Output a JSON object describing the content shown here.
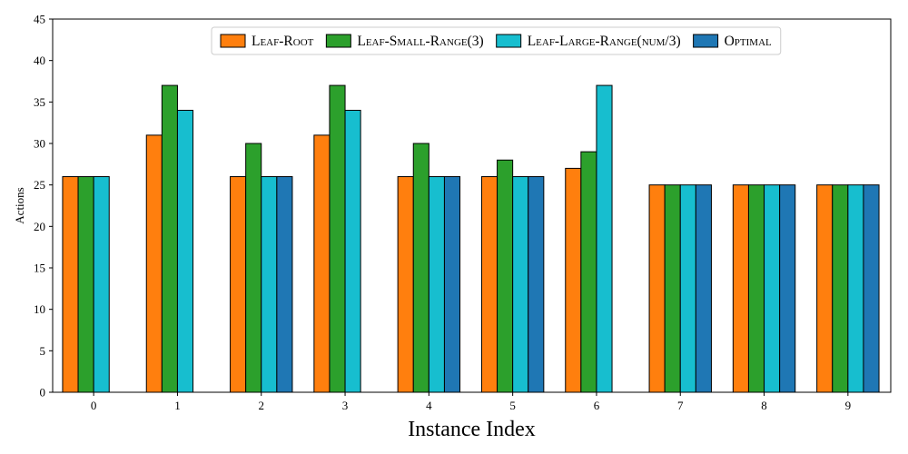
{
  "chart_data": {
    "type": "bar",
    "title": "",
    "xlabel": "Instance Index",
    "ylabel": "Actions",
    "categories": [
      "0",
      "1",
      "2",
      "3",
      "4",
      "5",
      "6",
      "7",
      "8",
      "9"
    ],
    "ylim": [
      0,
      45
    ],
    "yticks": [
      0,
      5,
      10,
      15,
      20,
      25,
      30,
      35,
      40,
      45
    ],
    "grid": false,
    "legend_position": "top-right",
    "series": [
      {
        "name": "Leaf-Root",
        "color": "#ff7f0e",
        "values": [
          26,
          31,
          26,
          31,
          26,
          26,
          27,
          25,
          25,
          25
        ]
      },
      {
        "name": "Leaf-Small-Range(3)",
        "color": "#2ca02c",
        "values": [
          26,
          37,
          30,
          37,
          30,
          28,
          29,
          25,
          25,
          25
        ]
      },
      {
        "name": "Leaf-Large-Range(num/3)",
        "color": "#17becf",
        "values": [
          26,
          34,
          26,
          34,
          26,
          26,
          37,
          25,
          25,
          25
        ]
      },
      {
        "name": "Optimal",
        "color": "#1f77b4",
        "values": [
          0,
          0,
          26,
          0,
          26,
          26,
          0,
          25,
          25,
          25
        ]
      }
    ]
  }
}
